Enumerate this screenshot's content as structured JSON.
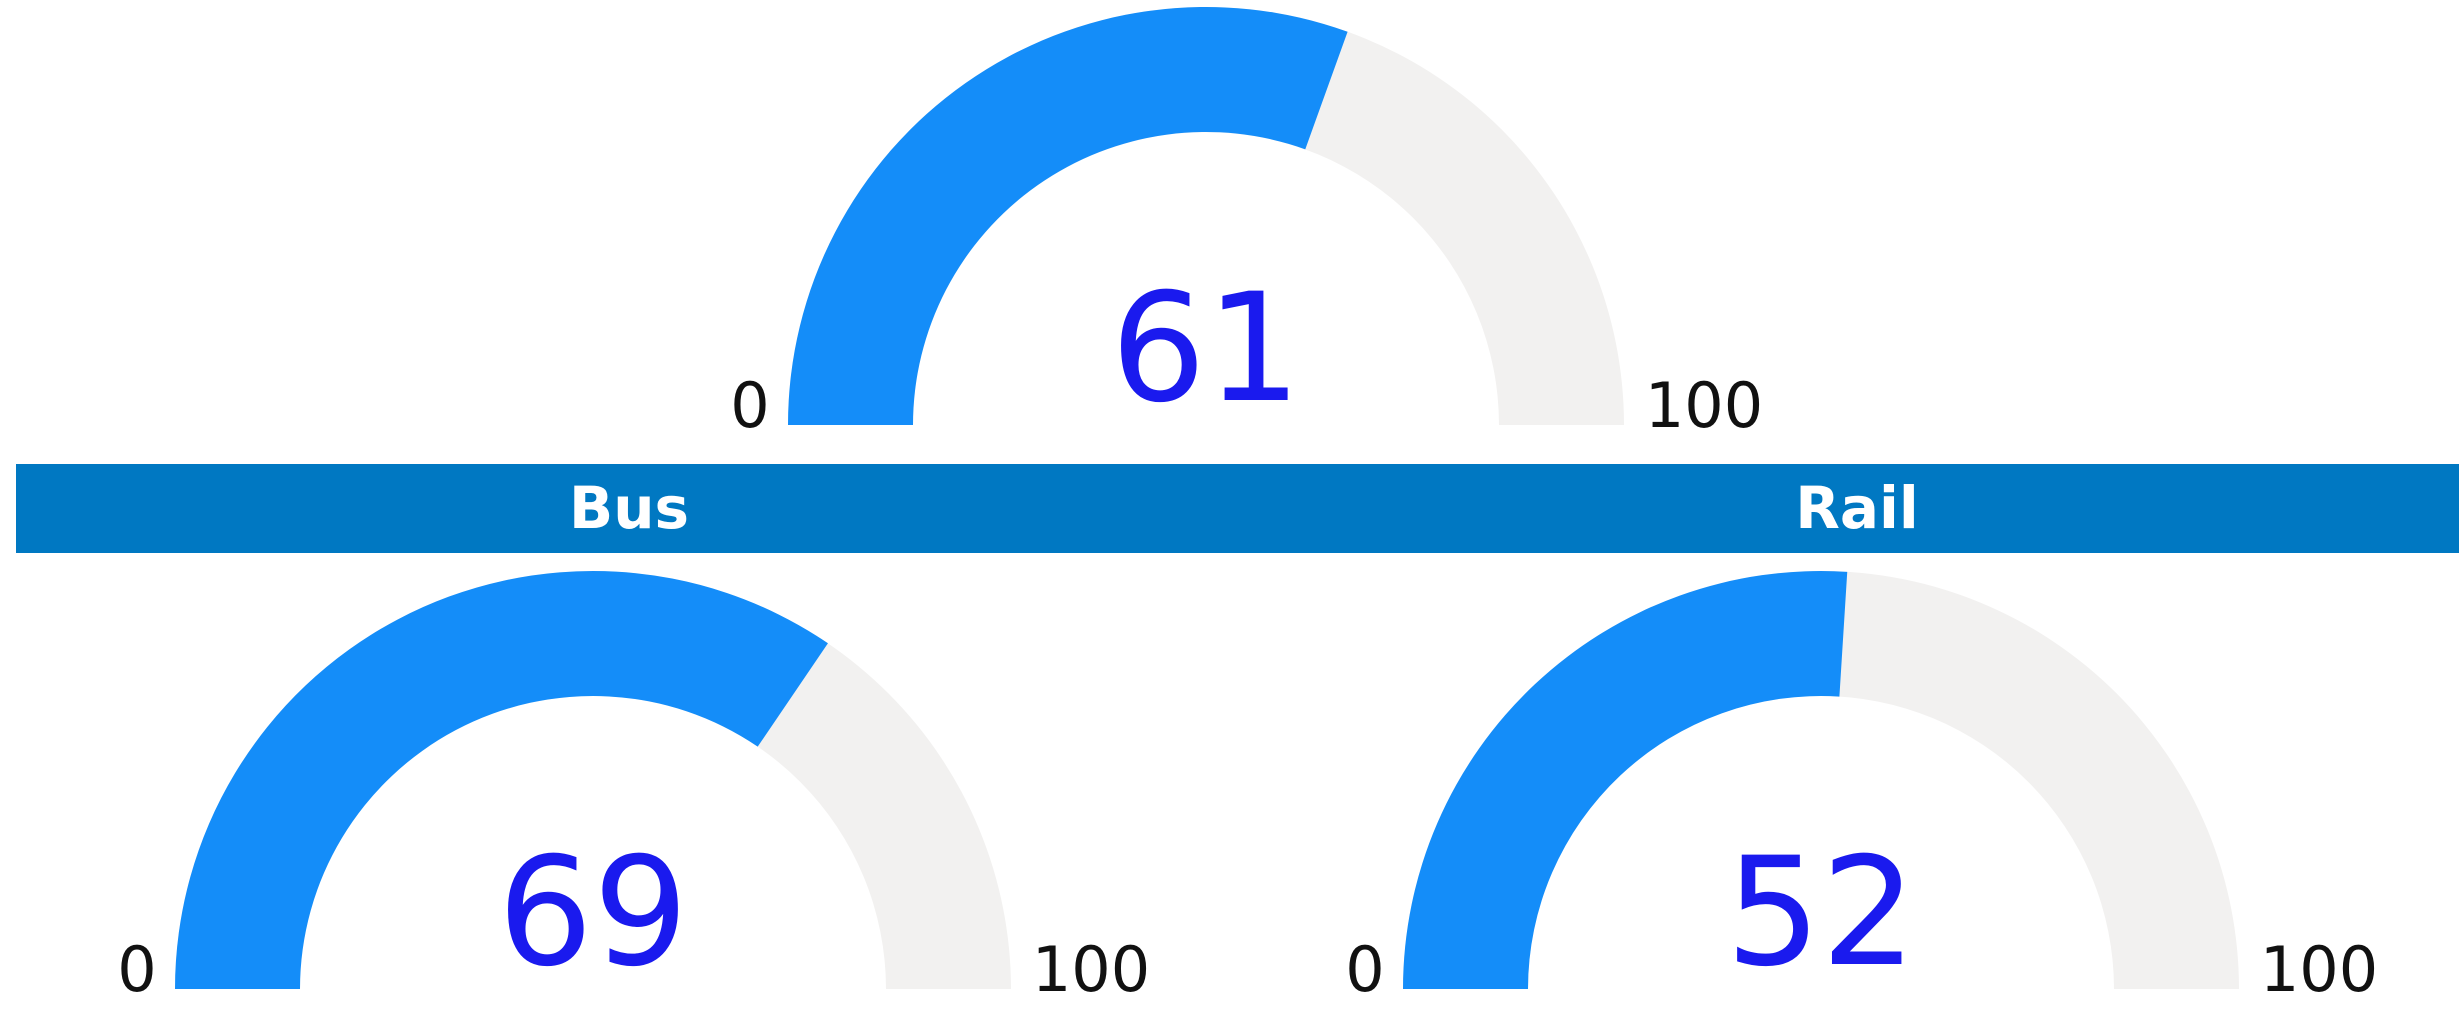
{
  "colors": {
    "fill": "#148df9",
    "track": "#f2f1f0",
    "value_text": "#1a1aee",
    "header": "#0078c2",
    "header_text": "#ffffff"
  },
  "headers": {
    "bus": "Bus",
    "rail": "Rail"
  },
  "chart_data": [
    {
      "type": "gauge",
      "value": 61,
      "min": 0,
      "max": 100,
      "value_label": "61",
      "min_label": "0",
      "max_label": "100"
    },
    {
      "type": "gauge",
      "title": "Bus",
      "value": 69,
      "min": 0,
      "max": 100,
      "value_label": "69",
      "min_label": "0",
      "max_label": "100"
    },
    {
      "type": "gauge",
      "title": "Rail",
      "value": 52,
      "min": 0,
      "max": 100,
      "value_label": "52",
      "min_label": "0",
      "max_label": "100"
    }
  ]
}
